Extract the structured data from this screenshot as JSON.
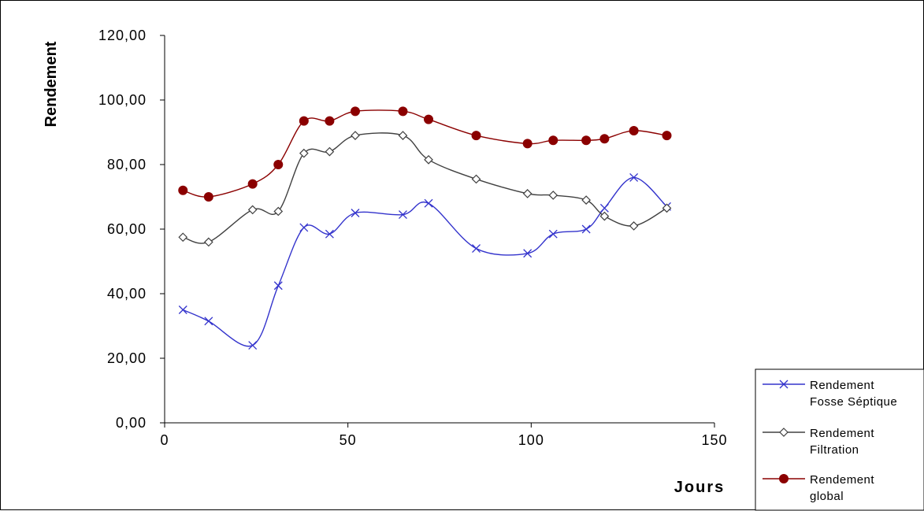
{
  "chart_data": {
    "type": "line",
    "ylabel": "Rendement",
    "xlabel": "Jours",
    "xlim": [
      0,
      150
    ],
    "ylim": [
      0,
      120
    ],
    "x_ticks": [
      "0",
      "50",
      "100",
      "150"
    ],
    "y_ticks": [
      "0,00",
      "20,00",
      "40,00",
      "60,00",
      "80,00",
      "100,00",
      "120,00"
    ],
    "grid": false,
    "legend_position": "bottom-right",
    "series": [
      {
        "name": "Rendement Fosse Séptique",
        "legend_lines": [
          "Rendement",
          "Fosse Séptique"
        ],
        "color": "#3333cc",
        "marker": "x",
        "x": [
          5,
          12,
          24,
          31,
          38,
          45,
          52,
          65,
          72,
          85,
          99,
          106,
          115,
          120,
          128,
          137
        ],
        "y": [
          35,
          31.5,
          24,
          42.5,
          60.5,
          58.5,
          65,
          64.5,
          68,
          54,
          52.5,
          58.5,
          60,
          66.5,
          76,
          67
        ]
      },
      {
        "name": "Rendement Filtration",
        "legend_lines": [
          "Rendement",
          "Filtration"
        ],
        "color": "#404040",
        "marker": "diamond",
        "x": [
          5,
          12,
          24,
          31,
          38,
          45,
          52,
          65,
          72,
          85,
          99,
          106,
          115,
          120,
          128,
          137
        ],
        "y": [
          57.5,
          56,
          66,
          65.5,
          83.5,
          84,
          89,
          89,
          81.5,
          75.5,
          71,
          70.5,
          69,
          64,
          61,
          66.5
        ]
      },
      {
        "name": "Rendement global",
        "legend_lines": [
          "Rendement",
          "global"
        ],
        "color": "#8b0000",
        "marker": "circle",
        "x": [
          5,
          12,
          24,
          31,
          38,
          45,
          52,
          65,
          72,
          85,
          99,
          106,
          115,
          120,
          128,
          137
        ],
        "y": [
          72,
          70,
          74,
          80,
          93.5,
          93.5,
          96.5,
          96.5,
          94,
          89,
          86.5,
          87.5,
          87.5,
          88,
          90.5,
          89
        ]
      }
    ]
  }
}
